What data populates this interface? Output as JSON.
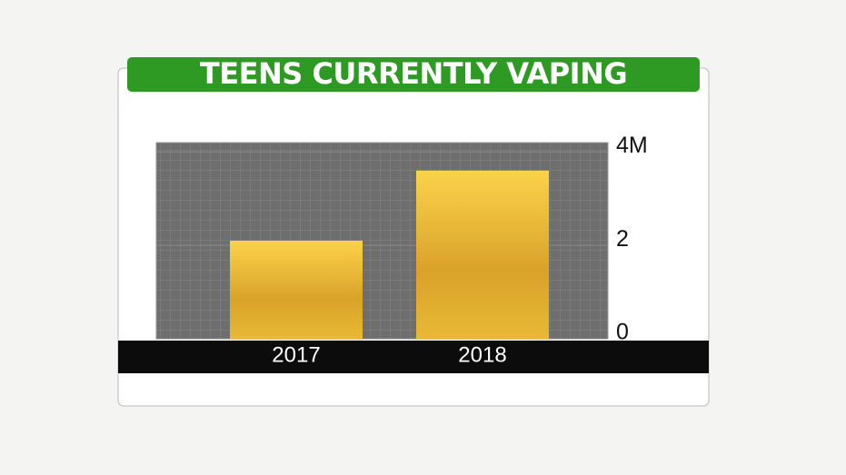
{
  "chart_data": {
    "type": "bar",
    "title": "TEENS CURRENTLY VAPING",
    "categories": [
      "2017",
      "2018"
    ],
    "values": [
      2.1,
      3.6
    ],
    "ylim": [
      0,
      4.2
    ],
    "yticks": [
      0,
      2,
      {
        "value": 4,
        "label": "4M"
      }
    ],
    "grid": true
  }
}
